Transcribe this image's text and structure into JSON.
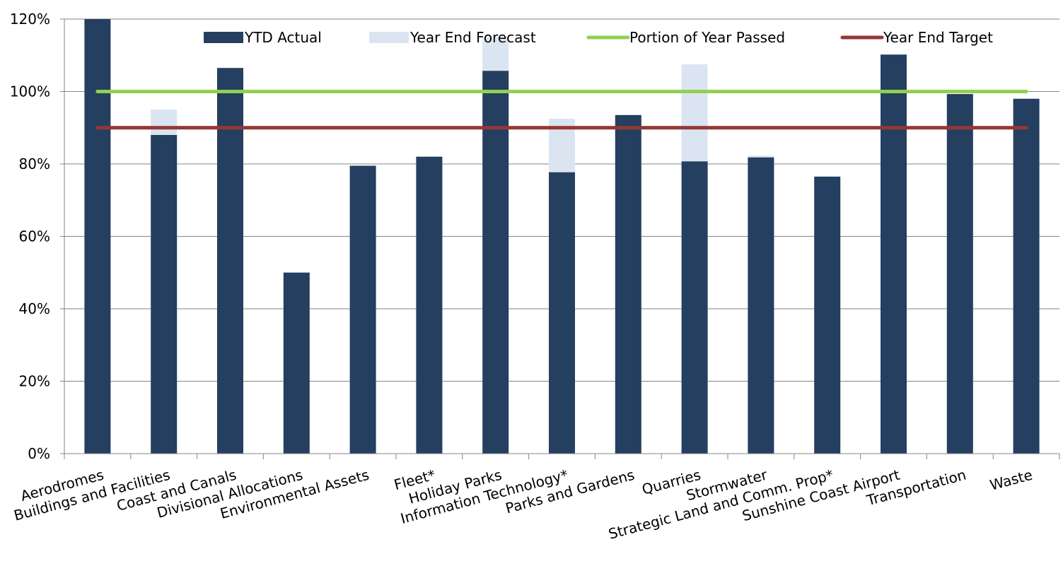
{
  "chart_data": {
    "type": "bar",
    "title": "",
    "xlabel": "",
    "ylabel": "",
    "ylim": [
      0,
      120
    ],
    "yticks": [
      0,
      20,
      40,
      60,
      80,
      100,
      120
    ],
    "ytick_labels": [
      "0%",
      "20%",
      "40%",
      "60%",
      "80%",
      "100%",
      "120%"
    ],
    "grid": "horizontal",
    "legend_position": "top",
    "categories": [
      "Aerodromes",
      "Buildings and Facilities",
      "Coast and Canals",
      "Divisional Allocations",
      "Environmental Assets",
      "Fleet*",
      "Holiday Parks",
      "Information Technology*",
      "Parks and Gardens",
      "Quarries",
      "Stormwater",
      "Strategic Land and Comm. Prop*",
      "Sunshine Coast Airport",
      "Transportation",
      "Waste"
    ],
    "series": [
      {
        "name": "YTD Actual",
        "kind": "bar",
        "color": "#253f60",
        "values": [
          120,
          88,
          106.5,
          50,
          79.5,
          82,
          105.7,
          77.7,
          93.5,
          80.7,
          81.8,
          76.5,
          110.2,
          99.3,
          98
        ]
      },
      {
        "name": "Year End Forecast",
        "kind": "bar",
        "color": "#dbe5f1",
        "values": [
          120,
          95,
          106.5,
          50,
          79.5,
          82,
          115,
          92.5,
          93.5,
          107.5,
          82.3,
          76.5,
          110.2,
          99.3,
          98
        ]
      },
      {
        "name": "Portion of Year Passed",
        "kind": "line",
        "color": "#92d050",
        "values": [
          100,
          100,
          100,
          100,
          100,
          100,
          100,
          100,
          100,
          100,
          100,
          100,
          100,
          100,
          100
        ]
      },
      {
        "name": "Year End Target",
        "kind": "line",
        "color": "#953735",
        "values": [
          90,
          90,
          90,
          90,
          90,
          90,
          90,
          90,
          90,
          90,
          90,
          90,
          90,
          90,
          90
        ]
      }
    ]
  }
}
